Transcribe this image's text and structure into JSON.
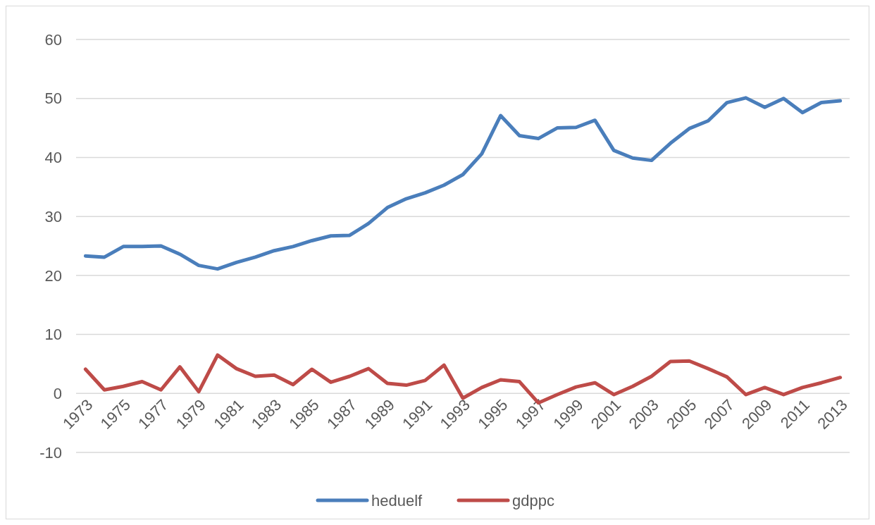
{
  "chart_data": {
    "type": "line",
    "categories": [
      "1973",
      null,
      "1975",
      null,
      "1977",
      null,
      "1979",
      null,
      "1981",
      null,
      "1983",
      null,
      "1985",
      null,
      "1987",
      null,
      "1989",
      null,
      "1991",
      null,
      "1993",
      null,
      "1995",
      null,
      "1997",
      null,
      "1999",
      null,
      "2001",
      null,
      "2003",
      null,
      "2005",
      null,
      "2007",
      null,
      "2009",
      null,
      "2011",
      null,
      "2013"
    ],
    "series": [
      {
        "name": "heduelf",
        "color": "#4a7ebb",
        "values": [
          23.3,
          23.1,
          24.9,
          24.9,
          25.0,
          23.6,
          21.7,
          21.1,
          22.2,
          23.1,
          24.2,
          24.9,
          25.9,
          26.7,
          26.8,
          28.8,
          31.5,
          33.0,
          34.0,
          35.3,
          37.1,
          40.6,
          47.1,
          43.7,
          43.2,
          45.0,
          45.1,
          46.3,
          41.2,
          39.9,
          39.5,
          42.4,
          44.9,
          46.2,
          49.3,
          50.1,
          48.5,
          50.0,
          47.6,
          49.3,
          49.6
        ]
      },
      {
        "name": "gdppc",
        "color": "#be4b48",
        "values": [
          4.1,
          0.6,
          1.2,
          2.0,
          0.6,
          4.5,
          0.3,
          6.5,
          4.2,
          2.9,
          3.1,
          1.5,
          4.1,
          1.9,
          2.9,
          4.2,
          1.7,
          1.4,
          2.2,
          4.8,
          -0.8,
          1.0,
          2.3,
          2.0,
          -1.6,
          -0.2,
          1.1,
          1.8,
          -0.2,
          1.2,
          2.9,
          5.4,
          5.5,
          4.2,
          2.8,
          -0.2,
          1.0,
          -0.2,
          1.0,
          1.8,
          2.7
        ]
      }
    ],
    "ylim": [
      -10,
      60
    ],
    "yticks": [
      -10,
      0,
      10,
      20,
      30,
      40,
      50,
      60
    ],
    "grid": "y",
    "legend": "bottom",
    "marker": "none",
    "line_style": "solid"
  }
}
